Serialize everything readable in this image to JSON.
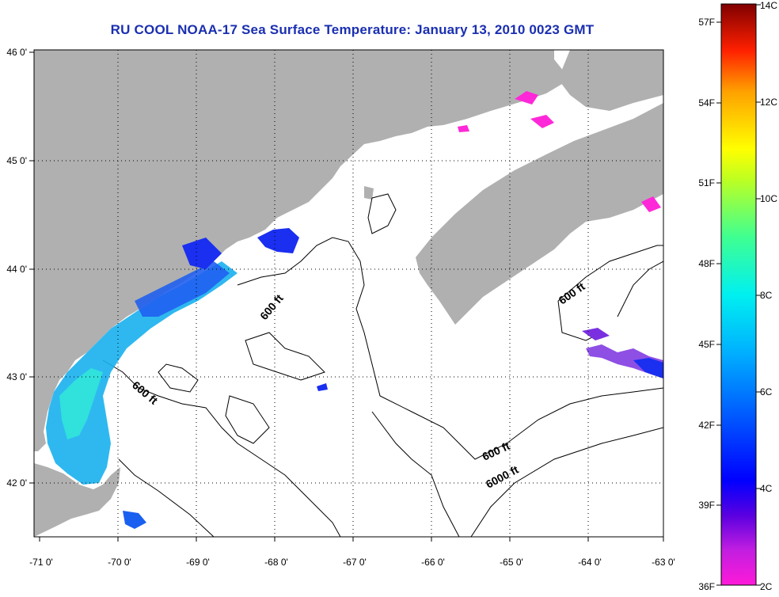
{
  "title": "RU COOL  NOAA-17  Sea Surface Temperature:  January 13, 2010 0023 GMT",
  "map": {
    "lon_labels": [
      "-71 0'",
      "-70 0'",
      "-69 0'",
      "-68 0'",
      "-67 0'",
      "-66 0'",
      "-65 0'",
      "-64 0'",
      "-63 0'"
    ],
    "lat_labels": [
      "46 0'",
      "45 0'",
      "44 0'",
      "43 0'",
      "42 0'"
    ],
    "contour_labels": [
      "600 ft",
      "600 ft",
      "600 ft",
      "600 ft",
      "6000 ft"
    ],
    "colors": {
      "land": "#b0b0b0",
      "ocean": "#ffffff",
      "contour": "#000000"
    }
  },
  "colorbar": {
    "fahrenheit_labels": [
      "57F",
      "54F",
      "51F",
      "48F",
      "45F",
      "42F",
      "39F",
      "36F"
    ],
    "celsius_labels": [
      "14C",
      "12C",
      "10C",
      "8C",
      "6C",
      "4C",
      "2C"
    ]
  }
}
